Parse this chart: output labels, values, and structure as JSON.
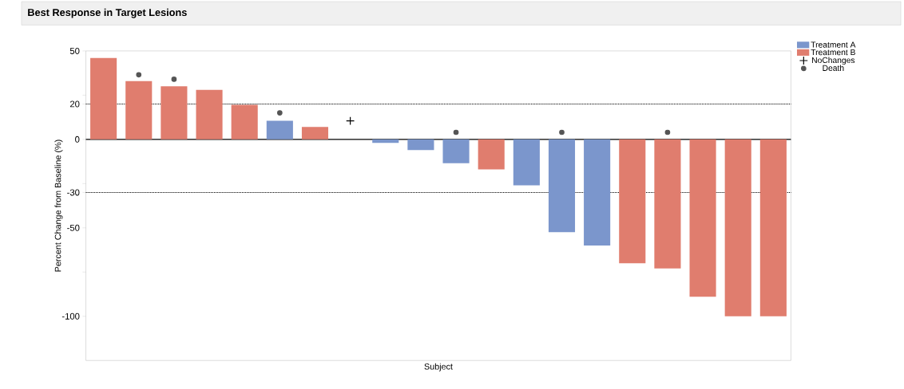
{
  "chart_data": {
    "type": "bar",
    "title": "Best Response in Target Lesions",
    "xlabel": "Subject",
    "ylabel": "Percent Change from Baseline (%)",
    "categories": [
      null,
      null,
      null,
      null,
      null,
      null,
      null,
      null,
      null,
      null,
      null,
      null,
      null,
      null,
      null,
      null,
      null,
      null,
      null,
      null
    ],
    "series": [
      {
        "name": "Treatment A",
        "color": "#7b96cc",
        "values": [
          null,
          null,
          null,
          null,
          null,
          10.5,
          null,
          null,
          -2,
          -6,
          -13.5,
          null,
          -26,
          -52.5,
          -60,
          null,
          null,
          null,
          null,
          null
        ]
      },
      {
        "name": "Treatment B",
        "color": "#e07d6e",
        "values": [
          46,
          33,
          30,
          28,
          19.5,
          null,
          7,
          null,
          null,
          null,
          null,
          -17,
          null,
          null,
          null,
          -70,
          -73,
          -89,
          -100,
          -100
        ]
      },
      {
        "name": "NoChanges",
        "type": "scatter",
        "marker": "cross",
        "color": "#000000",
        "values": [
          null,
          null,
          null,
          null,
          null,
          null,
          null,
          10.5,
          null,
          null,
          null,
          null,
          null,
          null,
          null,
          null,
          null,
          null,
          null,
          null
        ]
      },
      {
        "name": "Death",
        "type": "scatter",
        "marker": "circle",
        "color": "#555555",
        "values": [
          null,
          36.5,
          34,
          null,
          null,
          15,
          null,
          null,
          null,
          null,
          4,
          null,
          null,
          4,
          null,
          null,
          4,
          null,
          null,
          null
        ]
      }
    ],
    "ylim": [
      -125,
      50
    ],
    "yticks": [
      50,
      {
        "value": 25,
        "label": null
      },
      20,
      0,
      {
        "value": -25,
        "label": null
      },
      -30,
      -50,
      {
        "value": -75,
        "label": null
      },
      -100
    ],
    "ref_lines": [
      {
        "axis": "y",
        "value": 20,
        "line_style": "dotted",
        "color": "#000000"
      },
      {
        "axis": "y",
        "value": -30,
        "line_style": "dotted",
        "color": "#000000"
      },
      {
        "axis": "y",
        "value": 0,
        "line_style": "solid",
        "color": "#000000"
      }
    ],
    "legend": "top right",
    "tick_labels": "y",
    "grid": false
  }
}
